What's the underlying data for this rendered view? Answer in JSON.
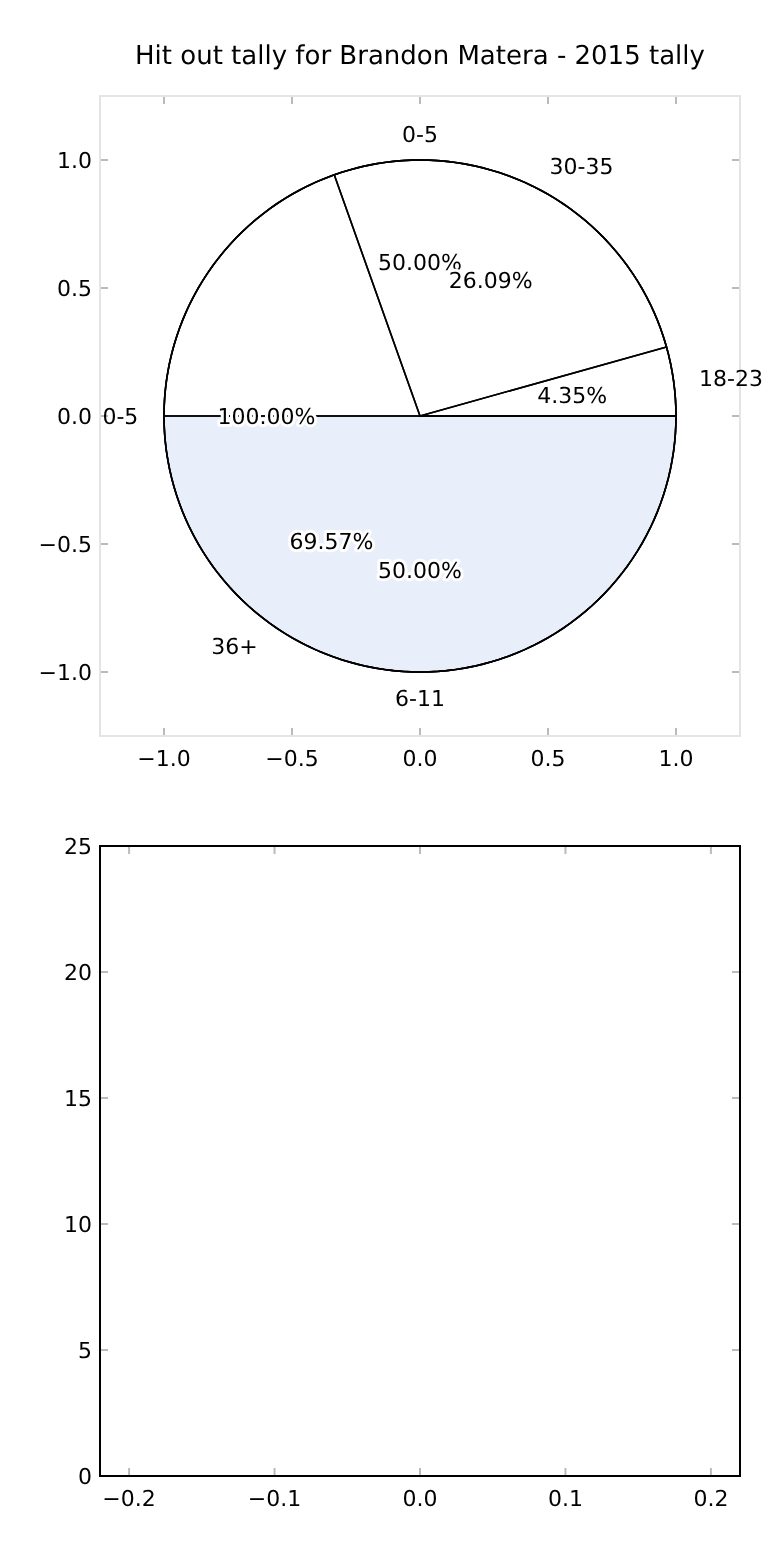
{
  "chart_data": [
    {
      "type": "pie",
      "title": "Hit out tally for Brandon Matera - 2015 tally",
      "categories": [
        "0-5",
        "6-11"
      ],
      "values": [
        50,
        50
      ],
      "colors": [
        "#ffffff",
        "#e8eefa"
      ],
      "value_labels": [
        "50.00%",
        "50.00%"
      ]
    },
    {
      "type": "pie",
      "categories": [
        "0-5"
      ],
      "values": [
        100
      ],
      "colors": [
        "#ffffff"
      ],
      "value_labels": [
        "100.00%"
      ]
    },
    {
      "type": "pie",
      "categories": [
        "18-23",
        "30-35",
        "36+"
      ],
      "values": [
        4.35,
        26.09,
        69.57
      ],
      "colors": [
        "#ffffff",
        "#ffffff",
        "#ffffff"
      ],
      "value_labels": [
        "4.35%",
        "26.09%",
        "69.57%"
      ]
    },
    {
      "type": "scatter",
      "xlim": [
        -1.25,
        1.25
      ],
      "ylim": [
        -1.25,
        1.25
      ],
      "xticks": [
        {
          "value": -1,
          "label": "−1.0"
        },
        {
          "value": -0.5,
          "label": "−0.5"
        },
        {
          "value": 0,
          "label": "0.0"
        },
        {
          "value": 0.5,
          "label": "0.5"
        },
        {
          "value": 1,
          "label": "1.0"
        }
      ],
      "yticks": [
        {
          "value": -1,
          "label": "−1.0"
        },
        {
          "value": -0.5,
          "label": "−0.5"
        },
        {
          "value": 0,
          "label": "0.0"
        },
        {
          "value": 0.5,
          "label": "0.5"
        },
        {
          "value": 1,
          "label": "1.0"
        }
      ]
    },
    {
      "type": "scatter",
      "xlim": [
        -0.22,
        0.22
      ],
      "ylim": [
        0,
        25
      ],
      "xticks": [
        {
          "value": -0.2,
          "label": "−0.2"
        },
        {
          "value": -0.1,
          "label": "−0.1"
        },
        {
          "value": 0,
          "label": "0.0"
        },
        {
          "value": 0.1,
          "label": "0.1"
        },
        {
          "value": 0.2,
          "label": "0.2"
        }
      ],
      "yticks": [
        0,
        5,
        10,
        15,
        20,
        25
      ]
    }
  ]
}
